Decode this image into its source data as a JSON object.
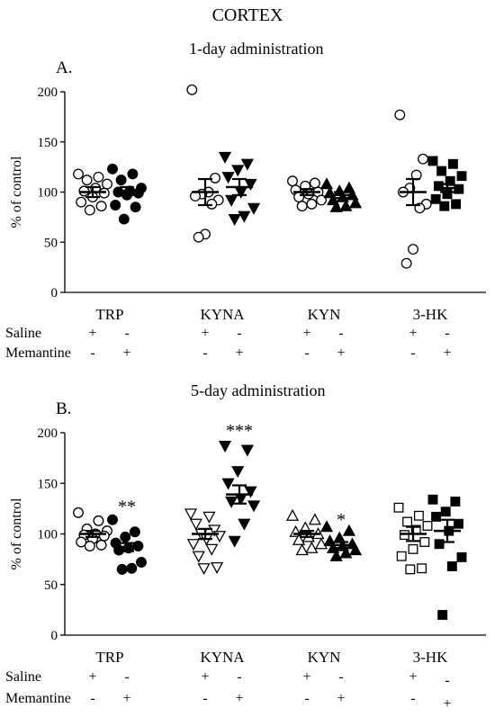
{
  "figure_title": "CORTEX",
  "chart_data": [
    {
      "type": "scatter",
      "panel_label": "A.",
      "title": "1-day administration",
      "ylabel": "% of control",
      "ylim": [
        0,
        200
      ],
      "yticks": [
        "0",
        "50",
        "100",
        "150",
        "200"
      ],
      "grid": false,
      "categories": [
        "TRP",
        "KYNA",
        "KYN",
        "3-HK"
      ],
      "treatment_rows": [
        {
          "label": "Saline",
          "marks": [
            "+",
            "-",
            "+",
            "-",
            "+",
            "-",
            "+",
            "-"
          ]
        },
        {
          "label": "Memantine",
          "marks": [
            "-",
            "+",
            "-",
            "+",
            "-",
            "+",
            "-",
            "+"
          ]
        }
      ],
      "groups": [
        {
          "category": "TRP",
          "treatment": "Saline",
          "marker": "circle-open",
          "mean": 100,
          "sem": 5,
          "values": [
            118,
            115,
            112,
            108,
            104,
            101,
            99,
            95,
            90,
            86,
            82
          ]
        },
        {
          "category": "TRP",
          "treatment": "Memantine",
          "marker": "circle-filled",
          "mean": 101,
          "sem": 4,
          "values": [
            123,
            118,
            112,
            104,
            101,
            100,
            99,
            97,
            87,
            85,
            73
          ]
        },
        {
          "category": "KYNA",
          "treatment": "Saline",
          "marker": "circle-open",
          "mean": 100,
          "sem": 13,
          "values": [
            202,
            114,
            100,
            98,
            96,
            92,
            88,
            58,
            55
          ]
        },
        {
          "category": "KYNA",
          "treatment": "Memantine",
          "marker": "triangle-down-filled",
          "mean": 105,
          "sem": 8,
          "values": [
            135,
            128,
            122,
            115,
            108,
            100,
            92,
            84,
            76,
            73
          ]
        },
        {
          "category": "KYN",
          "treatment": "Saline",
          "marker": "circle-open",
          "mean": 100,
          "sem": 3,
          "values": [
            111,
            109,
            106,
            102,
            100,
            98,
            95,
            92,
            88,
            86
          ]
        },
        {
          "category": "KYN",
          "treatment": "Memantine",
          "marker": "triangle-up-filled",
          "mean": 97,
          "sem": 3,
          "values": [
            108,
            104,
            101,
            99,
            97,
            95,
            92,
            89,
            86,
            85
          ]
        },
        {
          "category": "3-HK",
          "treatment": "Saline",
          "marker": "circle-open",
          "mean": 100,
          "sem": 13,
          "values": [
            177,
            133,
            117,
            104,
            100,
            88,
            84,
            43,
            29
          ]
        },
        {
          "category": "3-HK",
          "treatment": "Memantine",
          "marker": "square-filled",
          "mean": 104,
          "sem": 4,
          "values": [
            131,
            128,
            121,
            116,
            111,
            106,
            103,
            98,
            93,
            88,
            86
          ]
        }
      ],
      "annotations": []
    },
    {
      "type": "scatter",
      "panel_label": "B.",
      "title": "5-day administration",
      "ylabel": "% of control",
      "ylim": [
        0,
        200
      ],
      "yticks": [
        "0",
        "50",
        "100",
        "150",
        "200"
      ],
      "grid": false,
      "categories": [
        "TRP",
        "KYNA",
        "KYN",
        "3-HK"
      ],
      "treatment_rows": [
        {
          "label": "Saline",
          "marks": [
            "+",
            "-",
            "+",
            "-",
            "+",
            "-",
            "+",
            "-"
          ]
        },
        {
          "label": "Memantine",
          "marks": [
            "-",
            "+",
            "-",
            "+",
            "-",
            "+",
            "-",
            "+"
          ]
        }
      ],
      "groups": [
        {
          "category": "TRP",
          "treatment": "Saline",
          "marker": "circle-open",
          "mean": 100,
          "sem": 3,
          "values": [
            121,
            113,
            105,
            103,
            100,
            99,
            98,
            95,
            92,
            89,
            88
          ]
        },
        {
          "category": "TRP",
          "treatment": "Memantine",
          "marker": "circle-filled",
          "mean": 87,
          "sem": 4,
          "values": [
            114,
            102,
            97,
            91,
            88,
            86,
            84,
            72,
            66,
            65
          ]
        },
        {
          "category": "KYNA",
          "treatment": "Saline",
          "marker": "triangle-down-open",
          "mean": 100,
          "sem": 5,
          "values": [
            120,
            117,
            110,
            104,
            100,
            98,
            95,
            90,
            85,
            78,
            67,
            66
          ]
        },
        {
          "category": "KYNA",
          "treatment": "Memantine",
          "marker": "triangle-down-filled",
          "mean": 139,
          "sem": 9,
          "values": [
            187,
            183,
            162,
            150,
            142,
            135,
            132,
            128,
            110,
            93
          ]
        },
        {
          "category": "KYN",
          "treatment": "Saline",
          "marker": "triangle-up-open",
          "mean": 100,
          "sem": 3,
          "values": [
            118,
            114,
            106,
            102,
            100,
            97,
            94,
            90,
            86,
            84
          ]
        },
        {
          "category": "KYN",
          "treatment": "Memantine",
          "marker": "triangle-up-filled",
          "mean": 89,
          "sem": 3,
          "values": [
            107,
            103,
            96,
            93,
            90,
            88,
            86,
            84,
            81,
            78
          ]
        },
        {
          "category": "3-HK",
          "treatment": "Saline",
          "marker": "square-open",
          "mean": 100,
          "sem": 7,
          "values": [
            126,
            118,
            112,
            108,
            104,
            99,
            92,
            85,
            78,
            66,
            65
          ]
        },
        {
          "category": "3-HK",
          "treatment": "Memantine",
          "marker": "square-filled",
          "mean": 103,
          "sem": 11,
          "values": [
            134,
            132,
            122,
            117,
            110,
            103,
            90,
            77,
            68,
            20
          ]
        }
      ],
      "annotations": [
        {
          "group": 1,
          "text": "**",
          "y": 125
        },
        {
          "group": 3,
          "text": "***",
          "y": 200
        },
        {
          "group": 5,
          "text": "*",
          "y": 112
        }
      ]
    }
  ]
}
